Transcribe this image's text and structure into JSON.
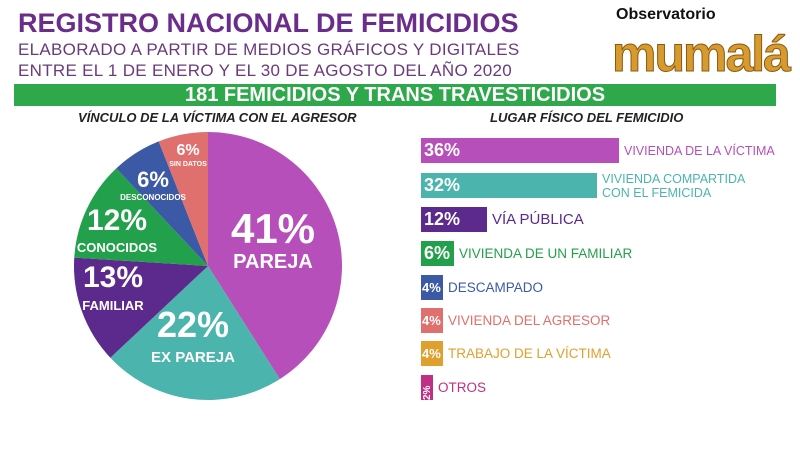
{
  "header": {
    "title": "REGISTRO NACIONAL DE FEMICIDIOS",
    "subtitle_1": "ELABORADO A PARTIR DE MEDIOS GRÁFICOS Y DIGITALES",
    "subtitle_2": "ENTRE EL 1 DE ENERO Y EL 30 DE AGOSTO DEL AÑO 2020",
    "logo_top": "Observatorio",
    "logo_main": "mumalá"
  },
  "banner": "181 FEMICIDIOS Y TRANS TRAVESTICIDIOS",
  "chart_data": [
    {
      "type": "pie",
      "title": "VÍNCULO DE LA VÍCTIMA CON EL AGRESOR",
      "slices": [
        {
          "label": "PAREJA",
          "value": 41,
          "text": "41%",
          "color": "#b64fb9"
        },
        {
          "label": "EX PAREJA",
          "value": 22,
          "text": "22%",
          "color": "#4bb5ad"
        },
        {
          "label": "FAMILIAR",
          "value": 13,
          "text": "13%",
          "color": "#5b2a8c"
        },
        {
          "label": "CONOCIDOS",
          "value": 12,
          "text": "12%",
          "color": "#23a04b"
        },
        {
          "label": "DESCONOCIDOS",
          "value": 6,
          "text": "6%",
          "color": "#3c59a6"
        },
        {
          "label": "SIN DATOS",
          "value": 6,
          "text": "6%",
          "color": "#e0706e"
        }
      ]
    },
    {
      "type": "bar",
      "orientation": "horizontal",
      "title": "LUGAR FÍSICO DEL FEMICIDIO",
      "bars": [
        {
          "label": "VIVIENDA DE LA VÍCTIMA",
          "value": 36,
          "text": "36%",
          "color": "#b64fb9"
        },
        {
          "label": "VIVIENDA COMPARTIDA\nCON EL FEMICIDA",
          "value": 32,
          "text": "32%",
          "color": "#4bb5ad"
        },
        {
          "label": "VÍA PÚBLICA",
          "value": 12,
          "text": "12%",
          "color": "#5b2a8c"
        },
        {
          "label": "VIVIENDA DE UN FAMILIAR",
          "value": 6,
          "text": "6%",
          "color": "#23a04b"
        },
        {
          "label": "DESCAMPADO",
          "value": 4,
          "text": "4%",
          "color": "#3c59a6"
        },
        {
          "label": "VIVIENDA DEL AGRESOR",
          "value": 4,
          "text": "4%",
          "color": "#e0706e"
        },
        {
          "label": "TRABAJO DE LA VÍCTIMA",
          "value": 4,
          "text": "4%",
          "color": "#e0a02e"
        },
        {
          "label": "OTROS",
          "value": 2,
          "text": "2%",
          "color": "#c02f85"
        }
      ]
    }
  ]
}
